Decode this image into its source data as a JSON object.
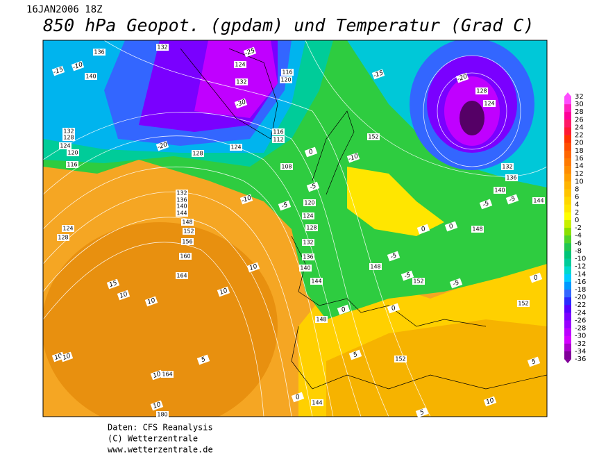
{
  "header": {
    "date": "16JAN2006 18Z",
    "title": "850 hPa Geopot. (gpdam) und  Temperatur (Grad C)"
  },
  "colorbar": {
    "labels": [
      32,
      30,
      28,
      26,
      24,
      22,
      20,
      18,
      16,
      14,
      12,
      10,
      8,
      6,
      4,
      2,
      0,
      -2,
      -4,
      -6,
      -8,
      -10,
      -12,
      -14,
      -16,
      -18,
      -20,
      -22,
      -24,
      -26,
      -28,
      -30,
      -32,
      -34,
      -36
    ],
    "colors": [
      "#ff4cff",
      "#ff1fbf",
      "#ff0099",
      "#ff1a66",
      "#ff1a33",
      "#ff3300",
      "#ff4d00",
      "#ff6600",
      "#ff7a00",
      "#ff8c00",
      "#ff9f00",
      "#ffb300",
      "#ffc400",
      "#ffd700",
      "#ffe600",
      "#ffff00",
      "#c8f000",
      "#8ae000",
      "#4fd42a",
      "#22c650",
      "#00c477",
      "#00cc99",
      "#00d9cc",
      "#00ccff",
      "#0099ff",
      "#3366ff",
      "#2a2aff",
      "#5500ff",
      "#7a00ff",
      "#9900ff",
      "#bb00ff",
      "#d400ff",
      "#aa00cc",
      "#800099"
    ]
  },
  "map": {
    "geopotential_labels": [
      132,
      136,
      140,
      132,
      128,
      124,
      120,
      116,
      132,
      136,
      140,
      144,
      148,
      152,
      156,
      160,
      164,
      124,
      128,
      108,
      112,
      116,
      116,
      120,
      124,
      132,
      128,
      124,
      120,
      124,
      128,
      132,
      136,
      140,
      144,
      148,
      152,
      148,
      152,
      144,
      152,
      148,
      152,
      144,
      140,
      136,
      132,
      128,
      124,
      164,
      180
    ],
    "temperature_labels": [
      -10,
      -15,
      -20,
      -25,
      -30,
      -20,
      -15,
      -10,
      -5,
      -5,
      -10,
      0,
      10,
      10,
      10,
      15,
      10,
      5,
      10,
      10,
      0,
      0,
      -5,
      -5,
      -5,
      0,
      0,
      5,
      10,
      5,
      0,
      -5,
      -5,
      0,
      5,
      10,
      10
    ]
  },
  "footer": {
    "source": "Daten: CFS Reanalysis",
    "copyright": "(C) Wetterzentrale",
    "url": "www.wetterzentrale.de"
  }
}
